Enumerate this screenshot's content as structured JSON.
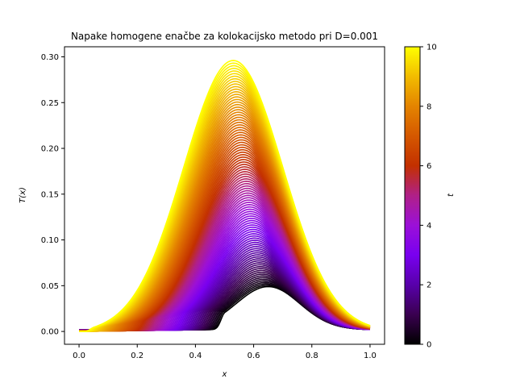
{
  "chart_data": {
    "type": "line",
    "title": "Napake homogene enačbe za kolokacijsko metodo pri D=0.001",
    "xlabel": "x",
    "ylabel": "T(x)",
    "xlim": [
      -0.05,
      1.05
    ],
    "ylim": [
      -0.014,
      0.311
    ],
    "x_ticks": [
      0.0,
      0.2,
      0.4,
      0.6,
      0.8,
      1.0
    ],
    "x_tick_labels": [
      "0.0",
      "0.2",
      "0.4",
      "0.6",
      "0.8",
      "1.0"
    ],
    "y_ticks": [
      0.0,
      0.05,
      0.1,
      0.15,
      0.2,
      0.25,
      0.3
    ],
    "y_tick_labels": [
      "0.00",
      "0.05",
      "0.10",
      "0.15",
      "0.20",
      "0.25",
      "0.30"
    ],
    "grid": false,
    "colormap": "gnuplot",
    "series_count": 100,
    "t_range": [
      0,
      10
    ],
    "envelope": {
      "t_start": {
        "peak_x": 0.65,
        "peak_y": 0.047
      },
      "t_end": {
        "peak_x": 0.53,
        "peak_y": 0.296
      }
    },
    "colorbar": {
      "label": "t",
      "min": 0,
      "max": 10,
      "ticks": [
        0,
        2,
        4,
        6,
        8,
        10
      ],
      "tick_labels": [
        "0",
        "2",
        "4",
        "6",
        "8",
        "10"
      ]
    }
  }
}
